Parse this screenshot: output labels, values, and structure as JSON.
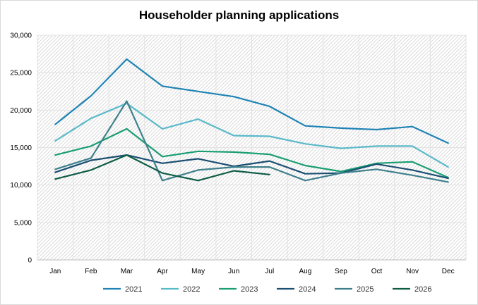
{
  "chart_data": {
    "type": "line",
    "title": "Householder planning applications",
    "xlabel": "",
    "ylabel": "",
    "categories": [
      "Jan",
      "Feb",
      "Mar",
      "Apr",
      "May",
      "Jun",
      "Jul",
      "Aug",
      "Sep",
      "Oct",
      "Nov",
      "Dec"
    ],
    "ylim": [
      0,
      30000
    ],
    "yticks": [
      0,
      5000,
      10000,
      15000,
      20000,
      25000,
      30000
    ],
    "ytick_labels": [
      "0",
      "5,000",
      "10,000",
      "15,000",
      "20,000",
      "25,000",
      "30,000"
    ],
    "grid": true,
    "legend_position": "bottom",
    "series": [
      {
        "name": "2021",
        "color": "#1f83b4",
        "values": [
          18100,
          21900,
          26800,
          23200,
          22500,
          21800,
          20500,
          17900,
          17600,
          17400,
          17800,
          15600
        ]
      },
      {
        "name": "2022",
        "color": "#5ab9c9",
        "values": [
          15900,
          18900,
          20900,
          17500,
          18800,
          16600,
          16500,
          15500,
          14900,
          15200,
          15200,
          12400
        ]
      },
      {
        "name": "2023",
        "color": "#1a9e73",
        "values": [
          14000,
          15200,
          17500,
          13800,
          14500,
          14400,
          14100,
          12600,
          11800,
          12900,
          13100,
          11000
        ]
      },
      {
        "name": "2024",
        "color": "#1b4f72",
        "values": [
          11700,
          13300,
          14000,
          12900,
          13500,
          12500,
          13200,
          11500,
          11600,
          12800,
          12000,
          10900
        ]
      },
      {
        "name": "2025",
        "color": "#3f7f8c",
        "values": [
          12100,
          13600,
          21200,
          10600,
          12000,
          12400,
          12400,
          10600,
          11600,
          12100,
          11300,
          10400
        ]
      },
      {
        "name": "2026",
        "color": "#0e5c45",
        "values": [
          10800,
          12000,
          14000,
          11600,
          10600,
          11900,
          11400,
          null,
          null,
          null,
          null,
          null
        ]
      }
    ]
  }
}
